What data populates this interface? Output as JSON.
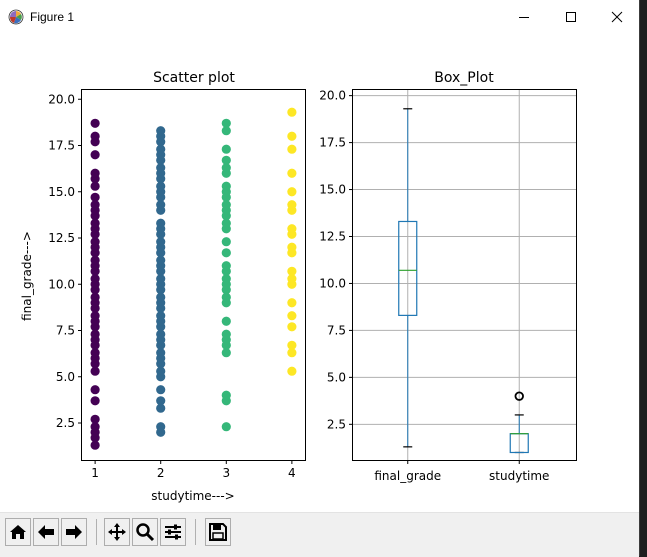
{
  "window": {
    "title": "Figure 1",
    "controls": {
      "minimize": "minimize",
      "maximize": "maximize",
      "close": "close"
    }
  },
  "toolbar": {
    "buttons": [
      {
        "name": "home",
        "icon": "home-icon"
      },
      {
        "name": "back",
        "icon": "arrow-left-icon"
      },
      {
        "name": "forward",
        "icon": "arrow-right-icon"
      },
      {
        "name": "pan",
        "icon": "move-icon"
      },
      {
        "name": "zoom",
        "icon": "magnifier-icon"
      },
      {
        "name": "configure-subplots",
        "icon": "sliders-icon"
      },
      {
        "name": "save",
        "icon": "floppy-disk-icon"
      }
    ]
  },
  "chart_data": [
    {
      "type": "scatter",
      "title": "Scatter plot",
      "xlabel": "studytime--->",
      "ylabel": "final_grade--->",
      "xlim": [
        0.8,
        4.2
      ],
      "ylim": [
        0.5,
        20.5
      ],
      "xticks": [
        "1",
        "2",
        "3",
        "4"
      ],
      "yticks": [
        "2.5",
        "5.0",
        "7.5",
        "10.0",
        "12.5",
        "15.0",
        "17.5",
        "20.0"
      ],
      "grid": false,
      "colors": {
        "1": "#440154",
        "2": "#31688e",
        "3": "#35b779",
        "4": "#fde725"
      },
      "series": [
        {
          "x": 1,
          "values": [
            1.3,
            1.7,
            2.0,
            2.3,
            2.7,
            3.7,
            4.3,
            5.3,
            5.7,
            6.0,
            6.3,
            6.7,
            7.0,
            7.3,
            7.7,
            8.0,
            8.3,
            8.7,
            9.0,
            9.3,
            9.7,
            10.0,
            10.3,
            10.7,
            11.0,
            11.3,
            11.7,
            12.0,
            12.3,
            12.7,
            13.0,
            13.3,
            13.7,
            14.0,
            14.3,
            14.7,
            15.3,
            15.7,
            16.0,
            17.0,
            17.7,
            18.0,
            18.7
          ]
        },
        {
          "x": 2,
          "values": [
            2.0,
            2.3,
            3.3,
            3.7,
            4.3,
            5.0,
            5.3,
            5.7,
            6.0,
            6.3,
            6.7,
            7.0,
            7.3,
            7.7,
            8.0,
            8.3,
            8.7,
            9.0,
            9.3,
            9.7,
            10.0,
            10.3,
            10.7,
            11.0,
            11.3,
            11.7,
            12.0,
            12.3,
            12.7,
            13.0,
            13.3,
            14.0,
            14.3,
            14.7,
            15.0,
            15.3,
            15.7,
            16.0,
            16.3,
            16.7,
            17.0,
            17.3,
            17.7,
            18.0,
            18.3
          ]
        },
        {
          "x": 3,
          "values": [
            2.3,
            3.7,
            4.0,
            6.3,
            6.7,
            7.0,
            7.3,
            8.0,
            9.0,
            9.3,
            9.7,
            10.0,
            10.3,
            10.7,
            11.0,
            11.7,
            12.3,
            13.0,
            13.3,
            13.7,
            14.0,
            14.3,
            14.7,
            15.0,
            15.3,
            16.0,
            16.3,
            16.7,
            17.3,
            18.3,
            18.7
          ]
        },
        {
          "x": 4,
          "values": [
            5.3,
            6.3,
            6.7,
            7.7,
            8.3,
            9.0,
            10.0,
            10.3,
            10.7,
            11.7,
            12.0,
            12.7,
            13.0,
            14.0,
            14.3,
            15.0,
            16.0,
            17.3,
            18.0,
            19.3
          ]
        }
      ]
    },
    {
      "type": "box",
      "title": "Box_Plot",
      "categories": [
        "final_grade",
        "studytime"
      ],
      "ylim": [
        0.6,
        20.3
      ],
      "yticks": [
        "2.5",
        "5.0",
        "7.5",
        "10.0",
        "12.5",
        "15.0",
        "17.5",
        "20.0"
      ],
      "grid": true,
      "box_color": "#1f77b4",
      "median_color": "#2ca02c",
      "boxes": [
        {
          "name": "final_grade",
          "whislo": 1.3,
          "q1": 8.3,
          "med": 10.7,
          "q3": 13.3,
          "whishi": 19.3,
          "fliers": []
        },
        {
          "name": "studytime",
          "whislo": 1.0,
          "q1": 1.0,
          "med": 2.0,
          "q3": 2.0,
          "whishi": 3.0,
          "fliers": [
            4.0
          ]
        }
      ]
    }
  ]
}
